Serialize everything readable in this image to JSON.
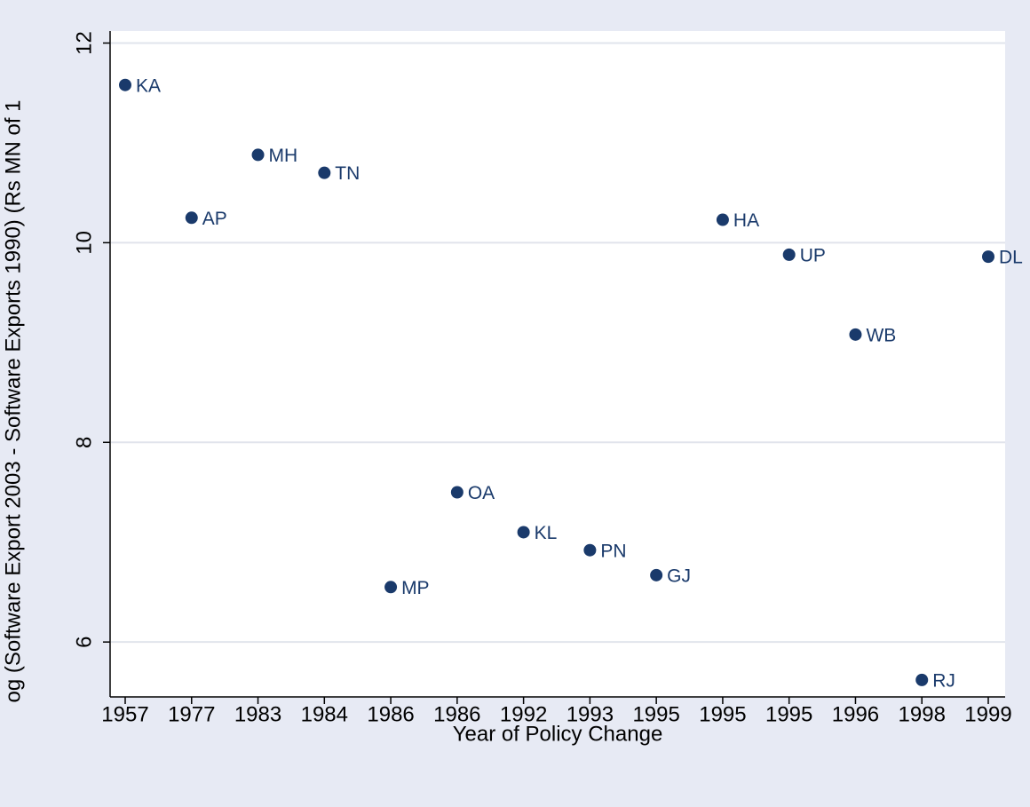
{
  "chart_data": {
    "type": "scatter",
    "x_label": "Year of Policy Change",
    "y_label": "og (Software Export 2003 - Software Exports 1990) (Rs MN of 1",
    "categories": [
      "1957",
      "1977",
      "1983",
      "1984",
      "1986",
      "1986",
      "1992",
      "1993",
      "1995",
      "1995",
      "1995",
      "1996",
      "1998",
      "1999"
    ],
    "labels": [
      "KA",
      "AP",
      "MH",
      "TN",
      "MP",
      "OA",
      "KL",
      "PN",
      "GJ",
      "HA",
      "UP",
      "WB",
      "RJ",
      "DL"
    ],
    "values": [
      11.58,
      10.25,
      10.88,
      10.7,
      6.55,
      7.5,
      7.1,
      6.92,
      6.67,
      10.23,
      9.88,
      9.08,
      5.62,
      9.86
    ],
    "color": "#1a3a6b",
    "ylim": [
      5.45,
      12.12
    ],
    "yticks": [
      6,
      8,
      10,
      12
    ],
    "grid": true
  }
}
